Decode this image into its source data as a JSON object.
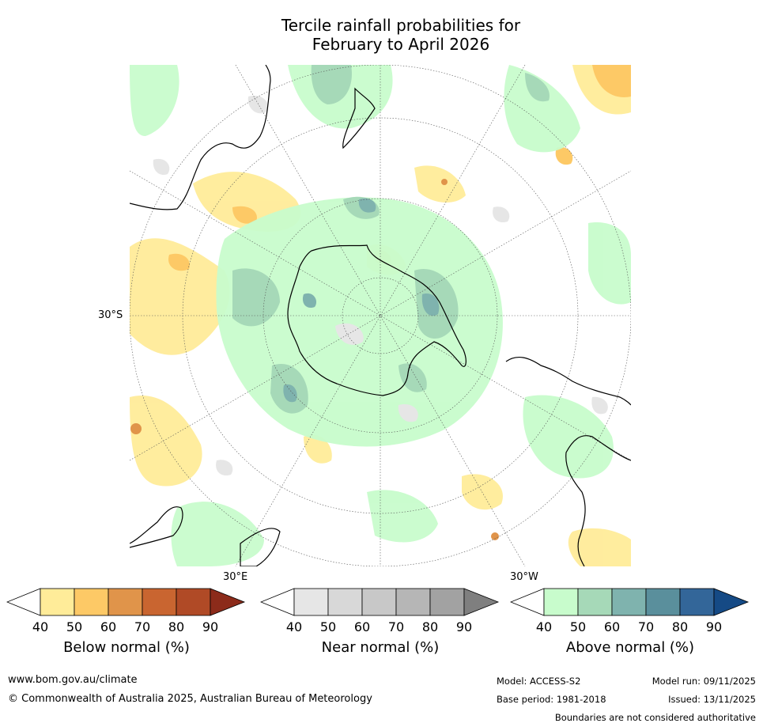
{
  "title": {
    "line1": "Tercile rainfall probabilities for",
    "line2": "February to April 2026"
  },
  "map": {
    "projection": "south-polar-stereographic",
    "lat_label": "30°S",
    "lon_label_east": "30°E",
    "lon_label_west": "30°W"
  },
  "legend": {
    "below": {
      "label": "Below normal (%)",
      "ticks": [
        "40",
        "50",
        "60",
        "70",
        "80",
        "90"
      ],
      "colors": [
        "#ffffff",
        "#ffec99",
        "#fdc966",
        "#e0944a",
        "#c96530",
        "#b04a26",
        "#8c2b1a"
      ]
    },
    "near": {
      "label": "Near normal (%)",
      "ticks": [
        "40",
        "50",
        "60",
        "70",
        "80",
        "90"
      ],
      "colors": [
        "#ffffff",
        "#e6e6e6",
        "#d8d8d8",
        "#c8c8c8",
        "#b6b6b6",
        "#a2a2a2",
        "#7f7f7f"
      ]
    },
    "above": {
      "label": "Above normal (%)",
      "ticks": [
        "40",
        "50",
        "60",
        "70",
        "80",
        "90"
      ],
      "colors": [
        "#ffffff",
        "#c8fccc",
        "#a6d9b8",
        "#7fb3ae",
        "#5a8f9c",
        "#336699",
        "#154a85"
      ]
    }
  },
  "footer": {
    "website": "www.bom.gov.au/climate",
    "copyright": "© Commonwealth of Australia 2025, Australian Bureau of Meteorology",
    "model": "Model: ACCESS-S2",
    "base_period": "Base period: 1981-2018",
    "model_run": "Model run: 09/11/2025",
    "issued": "Issued: 13/11/2025",
    "disclaimer": "Boundaries are not considered authoritative"
  }
}
